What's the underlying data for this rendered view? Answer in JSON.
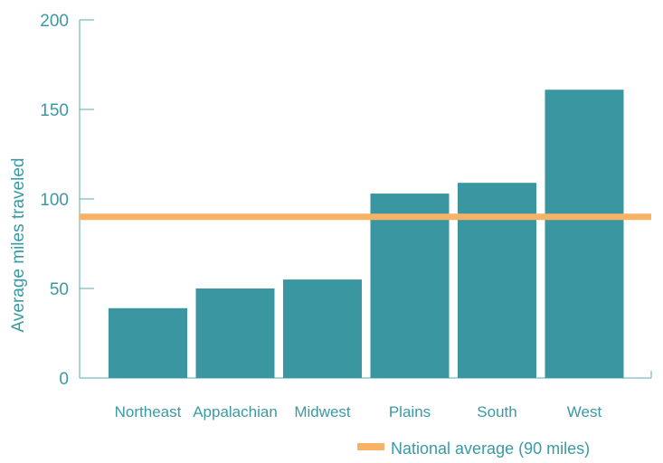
{
  "chart_data": {
    "type": "bar",
    "title": "",
    "xlabel": "",
    "ylabel": "Average miles traveled",
    "categories": [
      "Northeast",
      "Appalachian",
      "Midwest",
      "Plains",
      "South",
      "West"
    ],
    "values": [
      39,
      50,
      55,
      103,
      109,
      161
    ],
    "ylim": [
      0,
      200
    ],
    "yticks": [
      0,
      50,
      100,
      150,
      200
    ],
    "reference_line": {
      "value": 90,
      "label": "National average (90 miles)"
    },
    "grid": false,
    "legend_position": "bottom-right",
    "colors": {
      "bar": "#3a96a0",
      "reference_line": "#f8b265",
      "text": "#3a9aa4",
      "axis": "#5aaab3"
    }
  }
}
